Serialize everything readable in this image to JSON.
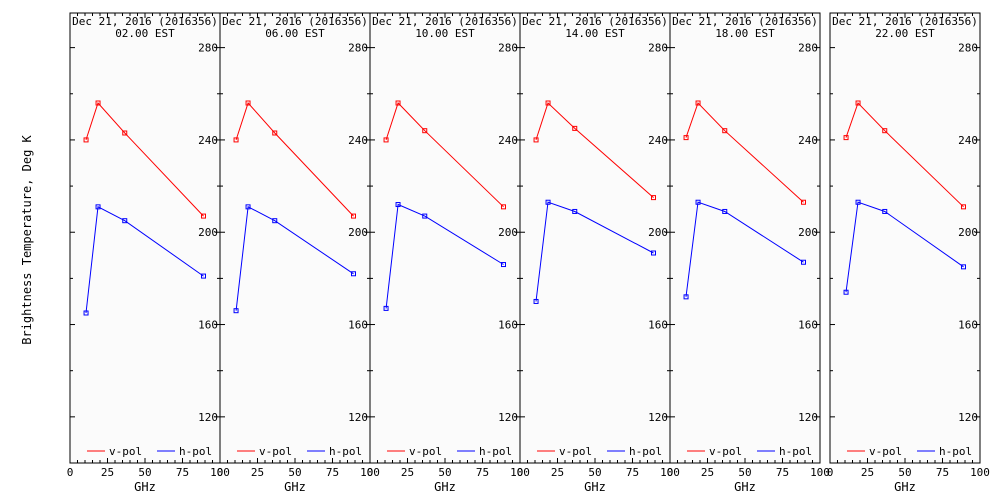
{
  "y_axis_label": "Brightness Temperature, Deg K",
  "chart_data": [
    {
      "type": "line",
      "title": "Dec 21, 2016 (2016356)",
      "subtitle": "02.00 EST",
      "xlabel": "GHz",
      "ylabel": "Brightness Temperature, Deg K",
      "xlim": [
        0,
        100
      ],
      "ylim": [
        100,
        295
      ],
      "xticks": [
        "0",
        "25",
        "50",
        "75",
        "100"
      ],
      "yticks": [
        "120",
        "160",
        "200",
        "240",
        "280"
      ],
      "grid": false,
      "legend": "bottom",
      "series": [
        {
          "name": "v-pol",
          "color": "#ff0000",
          "x": [
            10.7,
            18.7,
            36.5,
            89.0
          ],
          "y": [
            240,
            256,
            243,
            207
          ]
        },
        {
          "name": "h-pol",
          "color": "#0000ff",
          "x": [
            10.7,
            18.7,
            36.5,
            89.0
          ],
          "y": [
            165,
            211,
            205,
            181
          ]
        }
      ]
    },
    {
      "type": "line",
      "title": "Dec 21, 2016 (2016356)",
      "subtitle": "06.00 EST",
      "xlabel": "GHz",
      "xlim": [
        0,
        100
      ],
      "ylim": [
        100,
        295
      ],
      "xticks": [
        "0",
        "25",
        "50",
        "75",
        "100"
      ],
      "yticks": [
        "120",
        "160",
        "200",
        "240",
        "280"
      ],
      "grid": false,
      "legend": "bottom",
      "series": [
        {
          "name": "v-pol",
          "color": "#ff0000",
          "x": [
            10.7,
            18.7,
            36.5,
            89.0
          ],
          "y": [
            240,
            256,
            243,
            207
          ]
        },
        {
          "name": "h-pol",
          "color": "#0000ff",
          "x": [
            10.7,
            18.7,
            36.5,
            89.0
          ],
          "y": [
            166,
            211,
            205,
            182
          ]
        }
      ]
    },
    {
      "type": "line",
      "title": "Dec 21, 2016 (2016356)",
      "subtitle": "10.00 EST",
      "xlabel": "GHz",
      "xlim": [
        0,
        100
      ],
      "ylim": [
        100,
        295
      ],
      "xticks": [
        "0",
        "25",
        "50",
        "75",
        "100"
      ],
      "yticks": [
        "120",
        "160",
        "200",
        "240",
        "280"
      ],
      "grid": false,
      "legend": "bottom",
      "series": [
        {
          "name": "v-pol",
          "color": "#ff0000",
          "x": [
            10.7,
            18.7,
            36.5,
            89.0
          ],
          "y": [
            240,
            256,
            244,
            211
          ]
        },
        {
          "name": "h-pol",
          "color": "#0000ff",
          "x": [
            10.7,
            18.7,
            36.5,
            89.0
          ],
          "y": [
            167,
            212,
            207,
            186
          ]
        }
      ]
    },
    {
      "type": "line",
      "title": "Dec 21, 2016 (2016356)",
      "subtitle": "14.00 EST",
      "xlabel": "GHz",
      "xlim": [
        0,
        100
      ],
      "ylim": [
        100,
        295
      ],
      "xticks": [
        "0",
        "25",
        "50",
        "75",
        "100"
      ],
      "yticks": [
        "120",
        "160",
        "200",
        "240",
        "280"
      ],
      "grid": false,
      "legend": "bottom",
      "series": [
        {
          "name": "v-pol",
          "color": "#ff0000",
          "x": [
            10.7,
            18.7,
            36.5,
            89.0
          ],
          "y": [
            240,
            256,
            245,
            215
          ]
        },
        {
          "name": "h-pol",
          "color": "#0000ff",
          "x": [
            10.7,
            18.7,
            36.5,
            89.0
          ],
          "y": [
            170,
            213,
            209,
            191
          ]
        }
      ]
    },
    {
      "type": "line",
      "title": "Dec 21, 2016 (2016356)",
      "subtitle": "18.00 EST",
      "xlabel": "GHz",
      "xlim": [
        0,
        100
      ],
      "ylim": [
        100,
        295
      ],
      "xticks": [
        "0",
        "25",
        "50",
        "75",
        "100"
      ],
      "yticks": [
        "120",
        "160",
        "200",
        "240",
        "280"
      ],
      "grid": false,
      "legend": "bottom",
      "series": [
        {
          "name": "v-pol",
          "color": "#ff0000",
          "x": [
            10.7,
            18.7,
            36.5,
            89.0
          ],
          "y": [
            241,
            256,
            244,
            213
          ]
        },
        {
          "name": "h-pol",
          "color": "#0000ff",
          "x": [
            10.7,
            18.7,
            36.5,
            89.0
          ],
          "y": [
            172,
            213,
            209,
            187
          ]
        }
      ]
    },
    {
      "type": "line",
      "title": "Dec 21, 2016 (2016356)",
      "subtitle": "22.00 EST",
      "xlabel": "GHz",
      "xlim": [
        0,
        100
      ],
      "ylim": [
        100,
        295
      ],
      "xticks": [
        "0",
        "25",
        "50",
        "75",
        "100"
      ],
      "yticks": [
        "120",
        "160",
        "200",
        "240",
        "280"
      ],
      "grid": false,
      "legend": "bottom",
      "series": [
        {
          "name": "v-pol",
          "color": "#ff0000",
          "x": [
            10.7,
            18.7,
            36.5,
            89.0
          ],
          "y": [
            241,
            256,
            244,
            211
          ]
        },
        {
          "name": "h-pol",
          "color": "#0000ff",
          "x": [
            10.7,
            18.7,
            36.5,
            89.0
          ],
          "y": [
            174,
            213,
            209,
            185
          ]
        }
      ]
    }
  ]
}
